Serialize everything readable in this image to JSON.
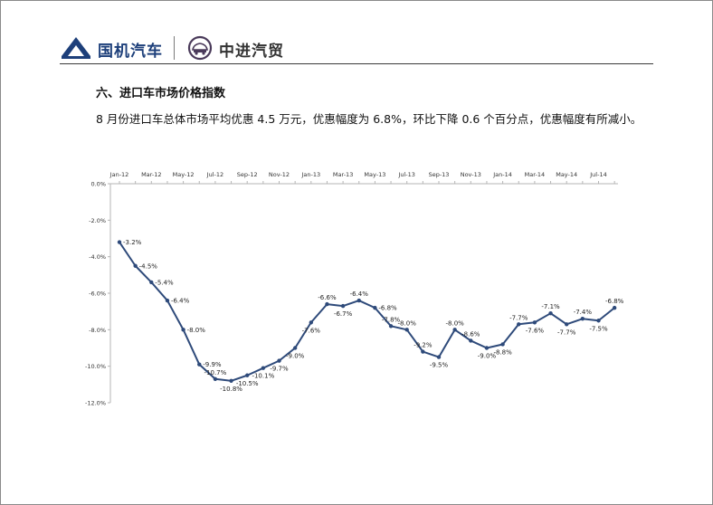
{
  "header": {
    "brand_left": "国机汽车",
    "brand_right": "中进汽贸",
    "logo_left_icon": "mountain-logo-icon",
    "logo_right_icon": "car-emblem-logo-icon",
    "brand_color": "#1d3f7a"
  },
  "section": {
    "title": "六、进口车市场价格指数",
    "paragraph": "8 月份进口车总体市场平均优惠 4.5 万元，优惠幅度为 6.8%，环比下降 0.6 个百分点，优惠幅度有所减小。"
  },
  "chart_data": {
    "type": "line",
    "title": "",
    "xlabel": "",
    "ylabel": "",
    "x": [
      "Jan-12",
      "Feb-12",
      "Mar-12",
      "Apr-12",
      "May-12",
      "Jun-12",
      "Jul-12",
      "Aug-12",
      "Sep-12",
      "Oct-12",
      "Nov-12",
      "Dec-12",
      "Jan-13",
      "Feb-13",
      "Mar-13",
      "Apr-13",
      "May-13",
      "Jun-13",
      "Jul-13",
      "Aug-13",
      "Sep-13",
      "Oct-13",
      "Nov-13",
      "Dec-13",
      "Jan-14",
      "Feb-14",
      "Mar-14",
      "Apr-14",
      "May-14",
      "Jun-14",
      "Jul-14",
      "Aug-14"
    ],
    "x_tick_labels": [
      "Jan-12",
      "Mar-12",
      "May-12",
      "Jul-12",
      "Sep-12",
      "Nov-12",
      "Jan-13",
      "Mar-13",
      "May-13",
      "Jul-13",
      "Sep-13",
      "Nov-13",
      "Jan-14",
      "Mar-14",
      "May-14",
      "Jul-14"
    ],
    "series": [
      {
        "values": [
          -3.2,
          -4.5,
          -5.4,
          -6.4,
          -8.0,
          -9.9,
          -10.7,
          -10.8,
          -10.5,
          -10.1,
          -9.7,
          -9.0,
          -7.6,
          -6.6,
          -6.7,
          -6.4,
          -6.8,
          -7.8,
          -8.0,
          -9.2,
          -9.5,
          -8.0,
          -8.6,
          -9.0,
          -8.8,
          -7.7,
          -7.6,
          -7.1,
          -7.7,
          -7.4,
          -7.5,
          -6.8
        ],
        "labels": [
          "-3.2%",
          "-4.5%",
          "-5.4%",
          "-6.4%",
          "-8.0%",
          "-9.9%",
          "-10.7%",
          "-10.8%",
          "-10.5%",
          "-10.1%",
          "-9.7%",
          "-9.0%",
          "-7.6%",
          "-6.6%",
          "-6.7%",
          "-6.4%",
          "-6.8%",
          "-7.8%",
          "-8.0%",
          "-9.2%",
          "-9.5%",
          "-8.0%",
          "-8.6%",
          "-9.0%",
          "-8.8%",
          "-7.7%",
          "-7.6%",
          "-7.1%",
          "-7.7%",
          "-7.4%",
          "-7.5%",
          "-6.8%"
        ],
        "label_position": [
          "right",
          "right",
          "right",
          "right",
          "right",
          "right",
          "above",
          "below",
          "below",
          "below",
          "below",
          "below",
          "below",
          "above",
          "below",
          "above",
          "right",
          "above",
          "above",
          "above",
          "below",
          "above",
          "above",
          "below",
          "below",
          "above",
          "below",
          "above",
          "below",
          "above",
          "below",
          "above"
        ],
        "color": "#2e4a7a"
      }
    ],
    "ylim": [
      -12,
      0
    ],
    "y_ticks": [
      0,
      -2,
      -4,
      -6,
      -8,
      -10,
      -12
    ],
    "y_tick_labels": [
      "0.0%",
      "-2.0%",
      "-4.0%",
      "-6.0%",
      "-8.0%",
      "-10.0%",
      "-12.0%"
    ],
    "x_axis_position": "top",
    "grid": false,
    "legend": "none",
    "axis_color": "#b5b5b5"
  }
}
